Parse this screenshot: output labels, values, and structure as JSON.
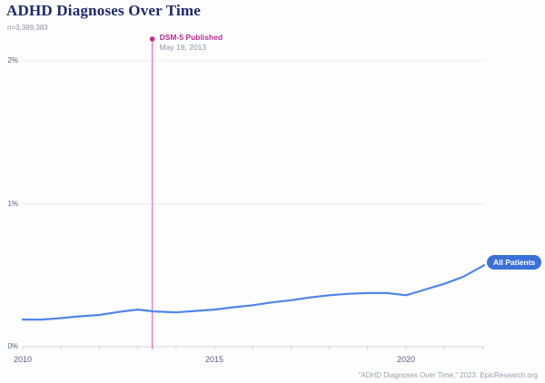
{
  "header": {
    "title": "ADHD Diagnoses Over Time",
    "subtitle": "n=3,389,383"
  },
  "series_badge_label": "All Patients",
  "footer_citation": "“ADHD Diagnoses Over Time,” 2023. EpicResearch.org",
  "colors": {
    "title_navy": "#20296b",
    "series_line_blue": "#4f86ea",
    "badge_blue": "#3b70d8",
    "annotation_magenta": "#bb2b8d",
    "annotation_line_pink": "#f07fc7",
    "gridline_gray": "#ebecf0",
    "axis_gray": "#d2d5dc",
    "label_slate": "#59617a",
    "muted_gray": "#8f94a6"
  },
  "chart_data": {
    "type": "line",
    "title": "ADHD Diagnoses Over Time",
    "subtitle": "n=3,389,383",
    "xlabel": "",
    "ylabel": "",
    "x_domain": [
      2010,
      2022.05
    ],
    "y_domain_percent": [
      0,
      2
    ],
    "grid": "horizontal-only",
    "legend_position": "end-of-line-badge",
    "y_ticks": [
      {
        "value": 0,
        "label": "0%"
      },
      {
        "value": 1,
        "label": "1%"
      },
      {
        "value": 2,
        "label": "2%"
      }
    ],
    "x_ticks_years": [
      2010,
      2011,
      2012,
      2013,
      2014,
      2015,
      2016,
      2017,
      2018,
      2019,
      2020,
      2021,
      2022
    ],
    "x_tick_labels": [
      {
        "year": 2010,
        "label": "2010"
      },
      {
        "year": 2015,
        "label": "2015"
      },
      {
        "year": 2020,
        "label": "2020"
      }
    ],
    "annotation": {
      "label": "DSM-5 Published",
      "sublabel": "May 18, 2013",
      "x_year": 2013.38
    },
    "series": [
      {
        "name": "All Patients",
        "unit": "percent_of_patients_diagnosed",
        "points": [
          [
            2010.0,
            0.19
          ],
          [
            2010.5,
            0.19
          ],
          [
            2011.0,
            0.2
          ],
          [
            2011.5,
            0.213
          ],
          [
            2012.0,
            0.222
          ],
          [
            2012.5,
            0.243
          ],
          [
            2013.0,
            0.26
          ],
          [
            2013.42,
            0.247
          ],
          [
            2014.0,
            0.24
          ],
          [
            2014.5,
            0.25
          ],
          [
            2015.0,
            0.26
          ],
          [
            2015.5,
            0.276
          ],
          [
            2016.0,
            0.29
          ],
          [
            2016.5,
            0.31
          ],
          [
            2017.0,
            0.325
          ],
          [
            2017.5,
            0.345
          ],
          [
            2018.0,
            0.36
          ],
          [
            2018.5,
            0.37
          ],
          [
            2019.0,
            0.375
          ],
          [
            2019.5,
            0.375
          ],
          [
            2020.0,
            0.36
          ],
          [
            2020.5,
            0.4
          ],
          [
            2021.0,
            0.44
          ],
          [
            2021.5,
            0.49
          ],
          [
            2022.04,
            0.57
          ]
        ]
      }
    ]
  }
}
